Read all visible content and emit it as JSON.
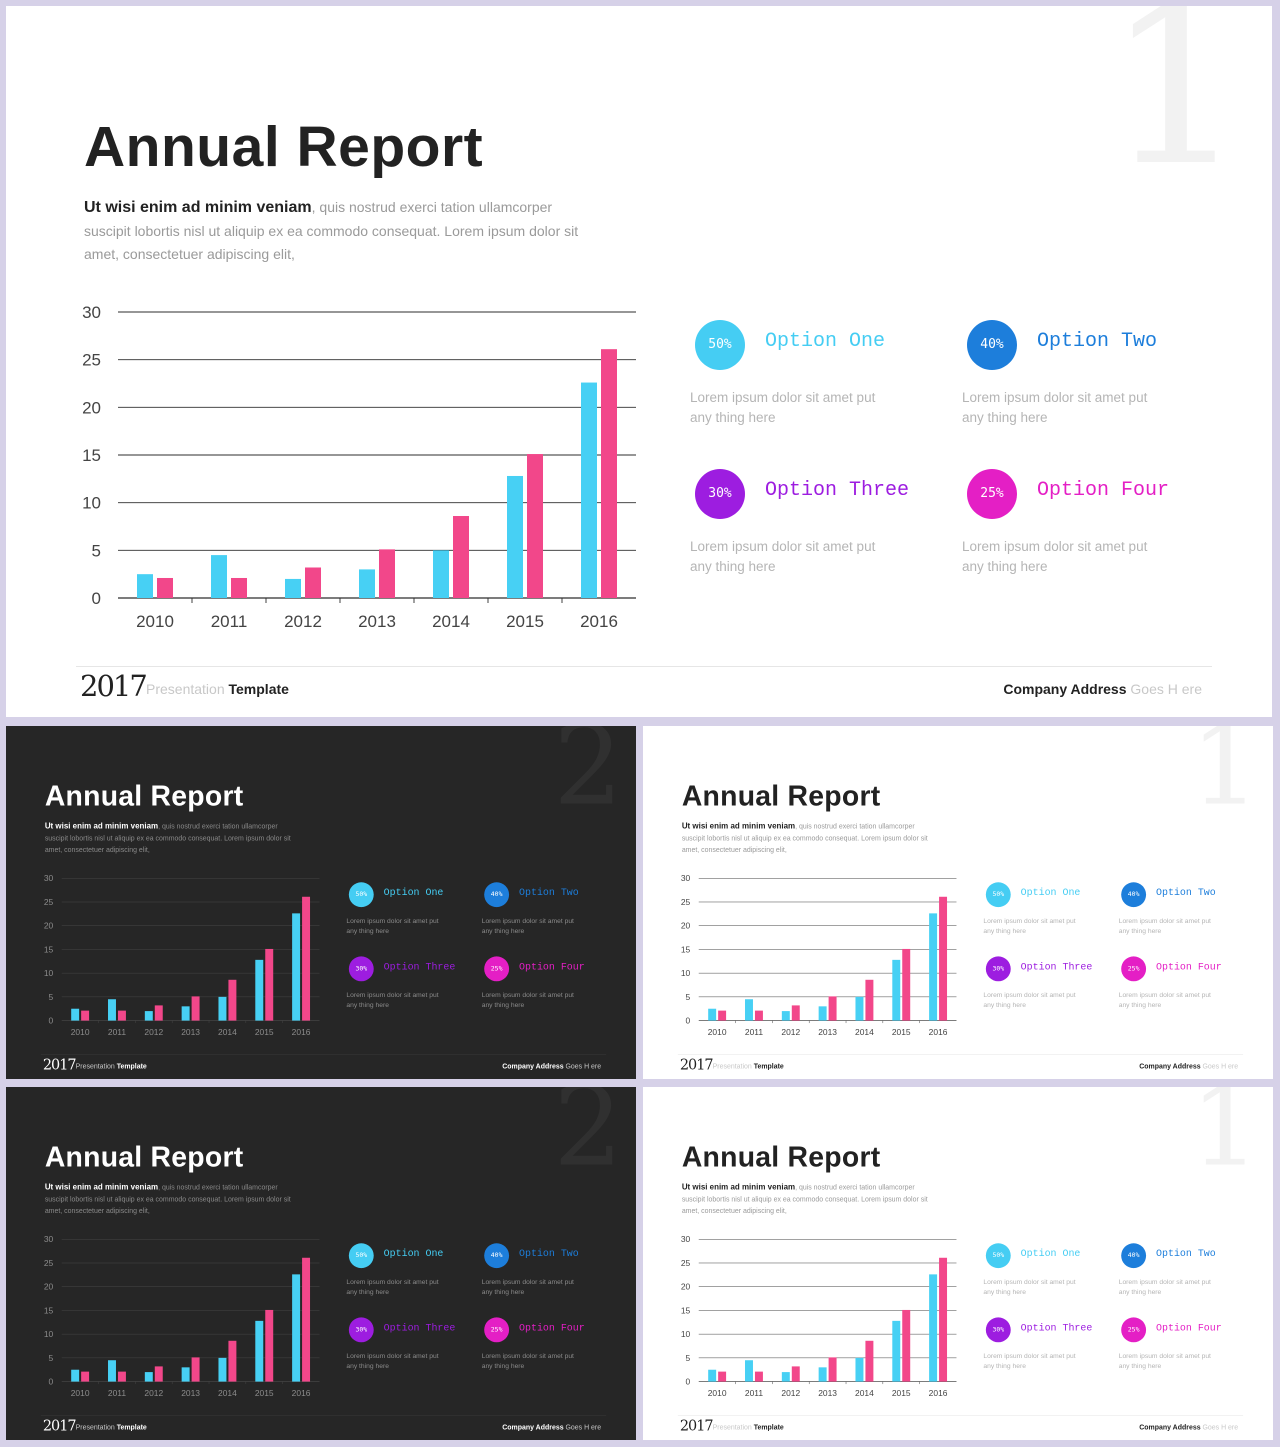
{
  "slide_numbers": {
    "light": "1",
    "dark": "2"
  },
  "report": {
    "title": "Annual Report",
    "intro_bold": "Ut wisi enim ad minim veniam",
    "intro_rest": ", quis nostrud exerci tation ullamcorper suscipit lobortis nisl ut aliquip ex ea commodo  consequat. Lorem ipsum dolor sit amet, consectetuer adipiscing elit,"
  },
  "options": [
    {
      "percent": "50%",
      "label": "Option One",
      "desc": "Lorem ipsum dolor sit amet put any thing here",
      "color": "#45cdf3"
    },
    {
      "percent": "40%",
      "label": "Option Two",
      "desc": "Lorem ipsum dolor sit amet put any thing here",
      "color": "#1d7edb"
    },
    {
      "percent": "30%",
      "label": "Option Three",
      "desc": "Lorem ipsum dolor sit amet put any thing here",
      "color": "#9d1de0"
    },
    {
      "percent": "25%",
      "label": "Option Four",
      "desc": "Lorem ipsum dolor sit amet put any thing here",
      "color": "#e41fc5"
    }
  ],
  "footer": {
    "year": "2017",
    "presentation": "Presentation",
    "template": "Template",
    "company_bold": "Company Address",
    "company_rest": "Goes H ere"
  },
  "chart_data": {
    "type": "bar",
    "categories": [
      "2010",
      "2011",
      "2012",
      "2013",
      "2014",
      "2015",
      "2016"
    ],
    "series": [
      {
        "values": [
          2.5,
          4.5,
          2,
          3,
          5,
          12.8,
          22.6
        ],
        "color": "#47d0f4"
      },
      {
        "values": [
          2.1,
          2.1,
          3.2,
          5.1,
          8.6,
          15.1,
          26.1
        ],
        "color": "#f2478a"
      }
    ],
    "yticks": [
      0,
      5,
      10,
      15,
      20,
      25,
      30
    ],
    "ylim": [
      0,
      30
    ],
    "grid": true
  }
}
